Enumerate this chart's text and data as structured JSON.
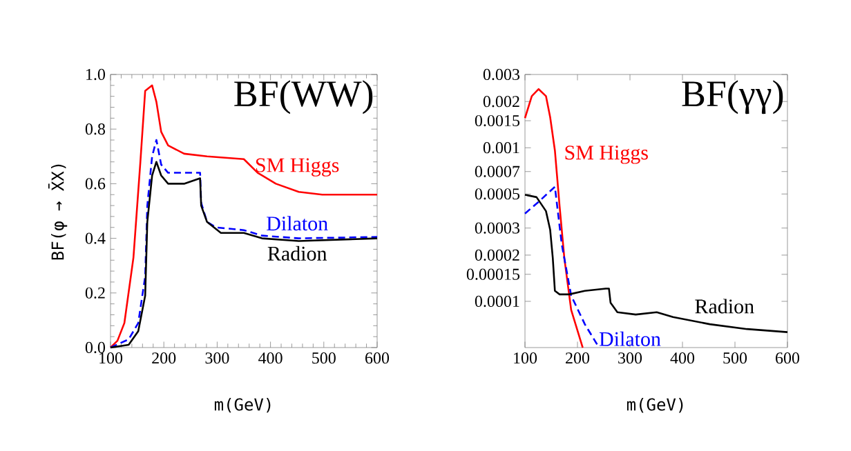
{
  "chart_data": [
    {
      "type": "line",
      "title": "BF(WW)",
      "xlabel": "m(GeV)",
      "ylabel": "BF(φ → X̄X)",
      "xlim": [
        100,
        600
      ],
      "ylim": [
        0,
        1
      ],
      "xticks": [
        100,
        200,
        300,
        400,
        500,
        600
      ],
      "yticks": [
        {
          "value": 0,
          "label": "0.0"
        },
        0.2,
        0.4,
        0.6,
        0.8,
        {
          "value": 1,
          "label": "1.0"
        }
      ],
      "grid": false,
      "legend": false,
      "marker": "none",
      "series": [
        {
          "name": "SM Higgs",
          "color": "#ff0000",
          "line_style": "solid",
          "x": [
            100,
            113,
            126,
            143,
            156,
            165,
            178,
            186,
            195,
            208,
            238,
            281,
            350,
            376,
            410,
            453,
            497,
            548,
            600
          ],
          "values": [
            0,
            0.025,
            0.09,
            0.33,
            0.68,
            0.94,
            0.96,
            0.9,
            0.79,
            0.74,
            0.71,
            0.7,
            0.69,
            0.64,
            0.6,
            0.57,
            0.56,
            0.56,
            0.56
          ]
        },
        {
          "name": "Dilaton",
          "color": "#0000ff",
          "line_style": "dashed",
          "x": [
            100,
            134,
            152,
            165,
            169,
            178,
            186,
            195,
            208,
            238,
            268,
            270,
            281,
            298,
            350,
            384,
            453,
            600
          ],
          "values": [
            0,
            0.03,
            0.09,
            0.26,
            0.52,
            0.7,
            0.76,
            0.67,
            0.64,
            0.64,
            0.64,
            0.53,
            0.46,
            0.44,
            0.43,
            0.41,
            0.4,
            0.405
          ]
        },
        {
          "name": "Radion",
          "color": "#000000",
          "line_style": "solid",
          "x": [
            100,
            134,
            152,
            165,
            169,
            178,
            186,
            195,
            208,
            238,
            268,
            270,
            281,
            307,
            350,
            384,
            453,
            600
          ],
          "values": [
            0,
            0.01,
            0.06,
            0.19,
            0.46,
            0.63,
            0.68,
            0.63,
            0.6,
            0.6,
            0.62,
            0.52,
            0.46,
            0.42,
            0.42,
            0.4,
            0.39,
            0.4
          ]
        }
      ]
    },
    {
      "type": "line",
      "title": "BF(γγ)",
      "xlabel": "m(GeV)",
      "xlim": [
        100,
        600
      ],
      "ylim": [
        5e-05,
        0.003
      ],
      "log": "y",
      "xticks": [
        100,
        200,
        300,
        400,
        500,
        600
      ],
      "yticks": [
        0.0001,
        0.00015,
        0.0002,
        0.0003,
        0.0005,
        0.0007,
        0.001,
        0.0015,
        0.002,
        0.003
      ],
      "grid": false,
      "legend": false,
      "marker": "none",
      "series": [
        {
          "name": "SM Higgs",
          "color": "#ff0000",
          "line_style": "solid",
          "x": [
            100,
            113,
            126,
            140,
            148,
            157,
            166,
            175,
            188,
            210
          ],
          "values": [
            0.00156,
            0.00217,
            0.00241,
            0.00217,
            0.00158,
            0.00096,
            0.000415,
            0.000191,
            8.8e-05,
            5e-05
          ]
        },
        {
          "name": "Dilaton",
          "color": "#0000ff",
          "line_style": "dashed",
          "x": [
            100,
            126,
            157,
            170,
            188,
            214,
            241
          ],
          "values": [
            0.000373,
            0.000445,
            0.000557,
            0.000236,
            0.000109,
            7.1e-05,
            5e-05
          ]
        },
        {
          "name": "Radion",
          "color": "#000000",
          "line_style": "solid",
          "x": [
            100,
            122,
            140,
            148,
            153,
            157,
            166,
            184,
            214,
            254,
            260,
            263,
            276,
            311,
            351,
            382,
            452,
            523,
            600
          ],
          "values": [
            0.000494,
            0.000477,
            0.000387,
            0.000292,
            0.000191,
            0.000117,
            0.000111,
            0.000111,
            0.000117,
            0.000121,
            0.000121,
            9.8e-05,
            8.5e-05,
            8.2e-05,
            8.5e-05,
            7.9e-05,
            7.1e-05,
            6.6e-05,
            6.3e-05
          ]
        }
      ]
    }
  ]
}
